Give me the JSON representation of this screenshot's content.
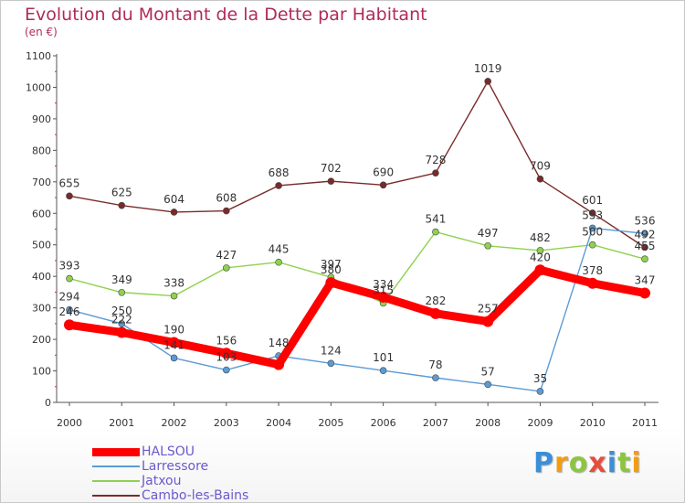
{
  "title": "Evolution du Montant de la Dette par Habitant",
  "unit_label": "(en €)",
  "chart_data": {
    "type": "line",
    "x": [
      "2000",
      "2001",
      "2002",
      "2003",
      "2004",
      "2005",
      "2006",
      "2007",
      "2008",
      "2009",
      "2010",
      "2011"
    ],
    "ylim": [
      0,
      1100
    ],
    "yticks": [
      0,
      100,
      200,
      300,
      400,
      500,
      600,
      700,
      800,
      900,
      1000,
      1100
    ],
    "grid": false,
    "legend_position": "bottom-left",
    "series": [
      {
        "name": "HALSOU",
        "color": "#ff0000",
        "values": [
          246,
          222,
          190,
          156,
          120,
          380,
          334,
          282,
          257,
          420,
          378,
          347
        ],
        "labels": [
          "246",
          "222",
          "190",
          "156",
          "",
          "380",
          "334",
          "282",
          "257",
          "420",
          "378",
          "347"
        ]
      },
      {
        "name": "Larressore",
        "color": "#5b9bd5",
        "values": [
          294,
          250,
          141,
          103,
          148,
          124,
          101,
          78,
          57,
          35,
          553,
          536
        ],
        "labels": [
          "294",
          "250",
          "141",
          "103",
          "148",
          "124",
          "101",
          "78",
          "57",
          "35",
          "553",
          "536"
        ]
      },
      {
        "name": "Jatxou",
        "color": "#8fd14f",
        "values": [
          393,
          349,
          338,
          427,
          445,
          397,
          315,
          541,
          497,
          482,
          500,
          455
        ],
        "labels": [
          "393",
          "349",
          "338",
          "427",
          "445",
          "397",
          "315",
          "541",
          "497",
          "482",
          "500",
          "455"
        ]
      },
      {
        "name": "Cambo-les-Bains",
        "color": "#7a2a2a",
        "values": [
          655,
          625,
          604,
          608,
          688,
          702,
          690,
          728,
          1019,
          709,
          601,
          492
        ],
        "labels": [
          "655",
          "625",
          "604",
          "608",
          "688",
          "702",
          "690",
          "728",
          "1019",
          "709",
          "601",
          "492"
        ]
      }
    ]
  },
  "logo": [
    "P",
    "r",
    "o",
    "x",
    "i",
    "t",
    "i"
  ],
  "logo_colors": [
    "#3a8fd8",
    "#f39c12",
    "#8cc63f",
    "#e74c3c",
    "#3a8fd8",
    "#8cc63f",
    "#f39c12"
  ]
}
